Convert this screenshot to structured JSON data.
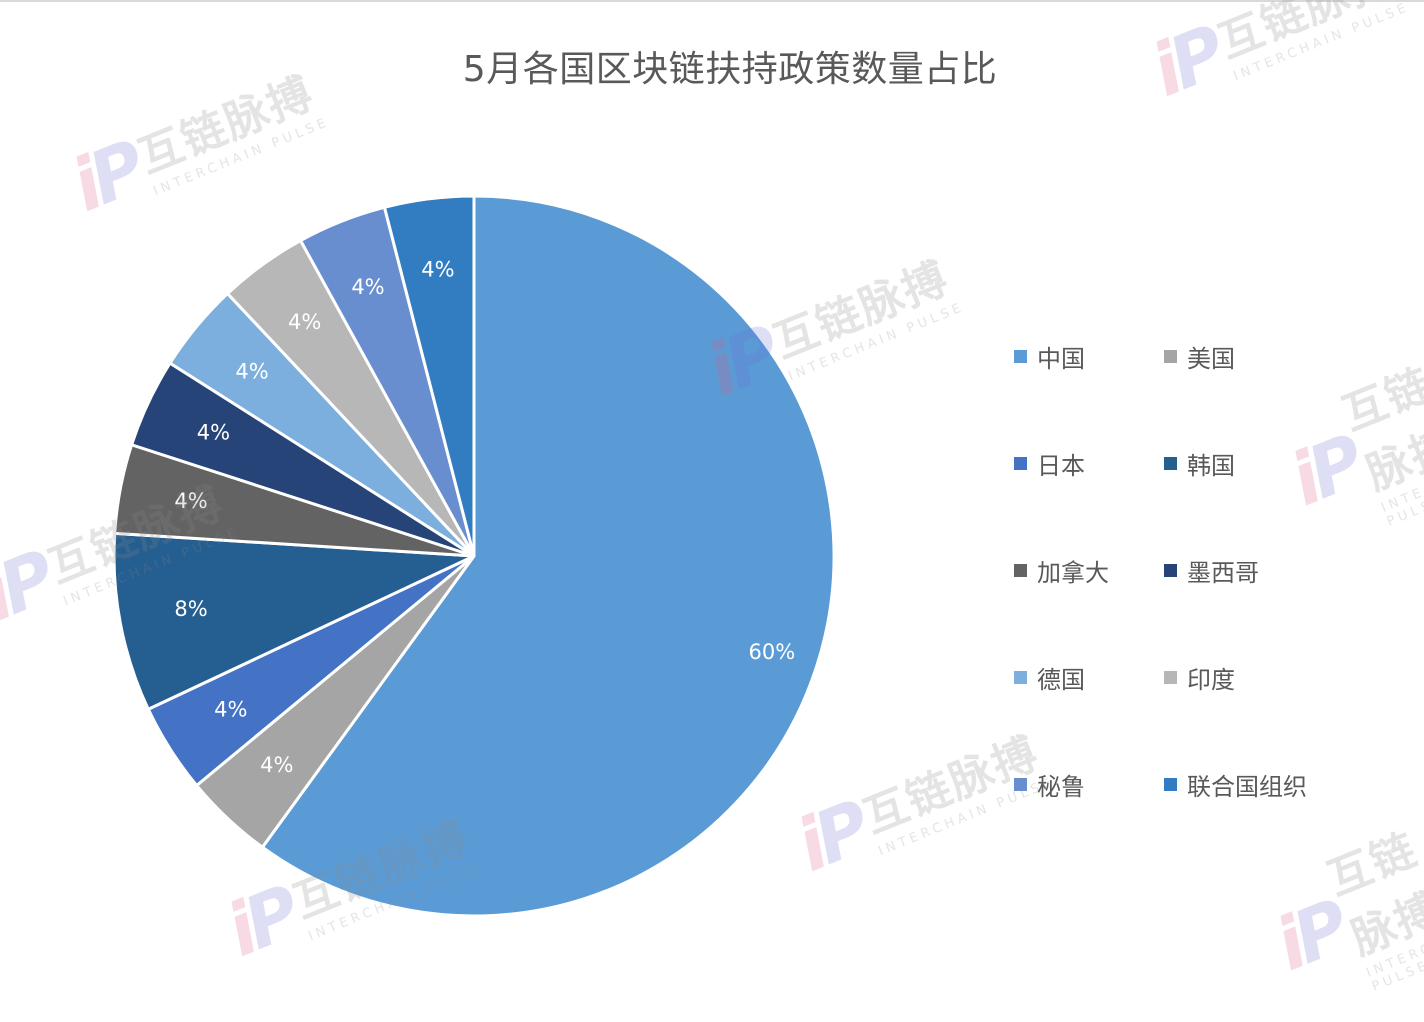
{
  "chart_data": {
    "type": "pie",
    "title": "5月各国区块链扶持政策数量占比",
    "categories": [
      "中国",
      "美国",
      "日本",
      "韩国",
      "加拿大",
      "墨西哥",
      "德国",
      "印度",
      "秘鲁",
      "联合国组织"
    ],
    "values": [
      60,
      4,
      4,
      8,
      4,
      4,
      4,
      4,
      4,
      4
    ],
    "data_labels": [
      "60%",
      "4%",
      "4%",
      "8%",
      "4%",
      "4%",
      "4%",
      "4%",
      "4%",
      "4%"
    ],
    "colors": [
      "#5b9bd5",
      "#a5a5a5",
      "#4472c4",
      "#255e91",
      "#636363",
      "#264478",
      "#7cafdd",
      "#b7b7b7",
      "#698ed0",
      "#327dc2"
    ],
    "legend_position": "right",
    "start_angle": "12 o'clock",
    "direction": "clockwise"
  },
  "watermark": {
    "logo": "iP",
    "brand": "互链脉搏",
    "subtitle": "INTERCHAIN PULSE"
  }
}
